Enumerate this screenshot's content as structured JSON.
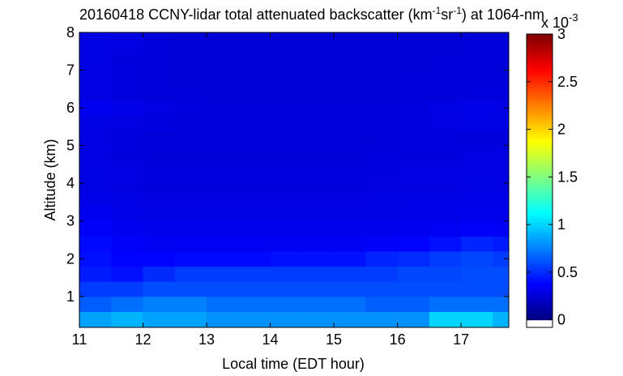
{
  "chart_data": {
    "type": "heatmap",
    "title_parts": [
      "20160418 CCNY-lidar total attenuated backscatter (km",
      "-1",
      "sr",
      "-1",
      ") at 1064-nm"
    ],
    "xlabel": "Local time (EDT hour)",
    "ylabel": "Altitude (km)",
    "colorbar_scale": [
      "x 10",
      "-3"
    ],
    "colormap": "jet",
    "clim": [
      0,
      3
    ],
    "colorbar_lim": [
      -0.08,
      3
    ],
    "colorbar_ticks": [
      0,
      0.5,
      1,
      1.5,
      2,
      2.5,
      3
    ],
    "xlim": [
      11,
      17.75
    ],
    "xticks": [
      11,
      12,
      13,
      14,
      15,
      16,
      17
    ],
    "ylim": [
      0.18,
      8
    ],
    "yticks": [
      1,
      2,
      3,
      4,
      5,
      6,
      7,
      8
    ],
    "x": [
      11.25,
      11.75,
      12.25,
      12.75,
      13.25,
      13.75,
      14.25,
      14.75,
      15.25,
      15.75,
      16.25,
      16.75,
      17.25,
      17.75
    ],
    "y": [
      0.4,
      0.8,
      1.2,
      1.6,
      2.0,
      2.4,
      2.8,
      3.2,
      3.6,
      4.0,
      4.4,
      4.8,
      5.2,
      5.6,
      6.0,
      6.4,
      6.8,
      7.2,
      7.6,
      8.0
    ],
    "z": [
      [
        0.85,
        0.9,
        0.85,
        0.85,
        0.8,
        0.8,
        0.8,
        0.8,
        0.8,
        0.8,
        0.8,
        1.0,
        1.0,
        0.9
      ],
      [
        0.65,
        0.7,
        0.75,
        0.75,
        0.7,
        0.7,
        0.7,
        0.7,
        0.7,
        0.65,
        0.65,
        0.7,
        0.7,
        0.7
      ],
      [
        0.55,
        0.55,
        0.6,
        0.6,
        0.6,
        0.6,
        0.6,
        0.6,
        0.6,
        0.6,
        0.6,
        0.6,
        0.6,
        0.6
      ],
      [
        0.45,
        0.42,
        0.5,
        0.55,
        0.55,
        0.55,
        0.55,
        0.55,
        0.55,
        0.55,
        0.58,
        0.58,
        0.6,
        0.6
      ],
      [
        0.42,
        0.38,
        0.38,
        0.4,
        0.4,
        0.4,
        0.42,
        0.42,
        0.42,
        0.48,
        0.5,
        0.55,
        0.58,
        0.55
      ],
      [
        0.4,
        0.36,
        0.34,
        0.34,
        0.34,
        0.34,
        0.34,
        0.34,
        0.34,
        0.36,
        0.38,
        0.42,
        0.48,
        0.45
      ],
      [
        0.36,
        0.33,
        0.32,
        0.32,
        0.32,
        0.32,
        0.32,
        0.32,
        0.32,
        0.32,
        0.33,
        0.34,
        0.36,
        0.35
      ],
      [
        0.33,
        0.31,
        0.3,
        0.3,
        0.3,
        0.3,
        0.3,
        0.3,
        0.3,
        0.3,
        0.31,
        0.31,
        0.32,
        0.32
      ],
      [
        0.31,
        0.3,
        0.29,
        0.29,
        0.29,
        0.29,
        0.29,
        0.29,
        0.29,
        0.3,
        0.3,
        0.3,
        0.31,
        0.31
      ],
      [
        0.3,
        0.29,
        0.28,
        0.28,
        0.28,
        0.28,
        0.28,
        0.28,
        0.28,
        0.29,
        0.29,
        0.29,
        0.3,
        0.3
      ],
      [
        0.3,
        0.29,
        0.28,
        0.28,
        0.28,
        0.28,
        0.28,
        0.28,
        0.28,
        0.28,
        0.29,
        0.29,
        0.29,
        0.29
      ],
      [
        0.29,
        0.28,
        0.27,
        0.27,
        0.27,
        0.27,
        0.27,
        0.27,
        0.27,
        0.28,
        0.28,
        0.28,
        0.29,
        0.29
      ],
      [
        0.29,
        0.28,
        0.27,
        0.27,
        0.27,
        0.27,
        0.27,
        0.27,
        0.27,
        0.27,
        0.28,
        0.28,
        0.28,
        0.28
      ],
      [
        0.3,
        0.29,
        0.28,
        0.27,
        0.27,
        0.27,
        0.27,
        0.27,
        0.27,
        0.27,
        0.28,
        0.29,
        0.3,
        0.3
      ],
      [
        0.33,
        0.31,
        0.29,
        0.28,
        0.27,
        0.27,
        0.27,
        0.27,
        0.27,
        0.27,
        0.28,
        0.3,
        0.31,
        0.3
      ],
      [
        0.29,
        0.28,
        0.27,
        0.27,
        0.26,
        0.26,
        0.26,
        0.26,
        0.26,
        0.26,
        0.27,
        0.27,
        0.28,
        0.28
      ],
      [
        0.29,
        0.28,
        0.27,
        0.26,
        0.26,
        0.26,
        0.26,
        0.26,
        0.26,
        0.26,
        0.27,
        0.27,
        0.27,
        0.27
      ],
      [
        0.3,
        0.28,
        0.27,
        0.26,
        0.26,
        0.26,
        0.26,
        0.26,
        0.26,
        0.26,
        0.26,
        0.27,
        0.27,
        0.27
      ],
      [
        0.3,
        0.29,
        0.27,
        0.26,
        0.26,
        0.26,
        0.26,
        0.26,
        0.26,
        0.26,
        0.26,
        0.26,
        0.27,
        0.27
      ],
      [
        0.3,
        0.29,
        0.27,
        0.26,
        0.26,
        0.26,
        0.26,
        0.26,
        0.26,
        0.26,
        0.26,
        0.26,
        0.26,
        0.26
      ]
    ]
  }
}
